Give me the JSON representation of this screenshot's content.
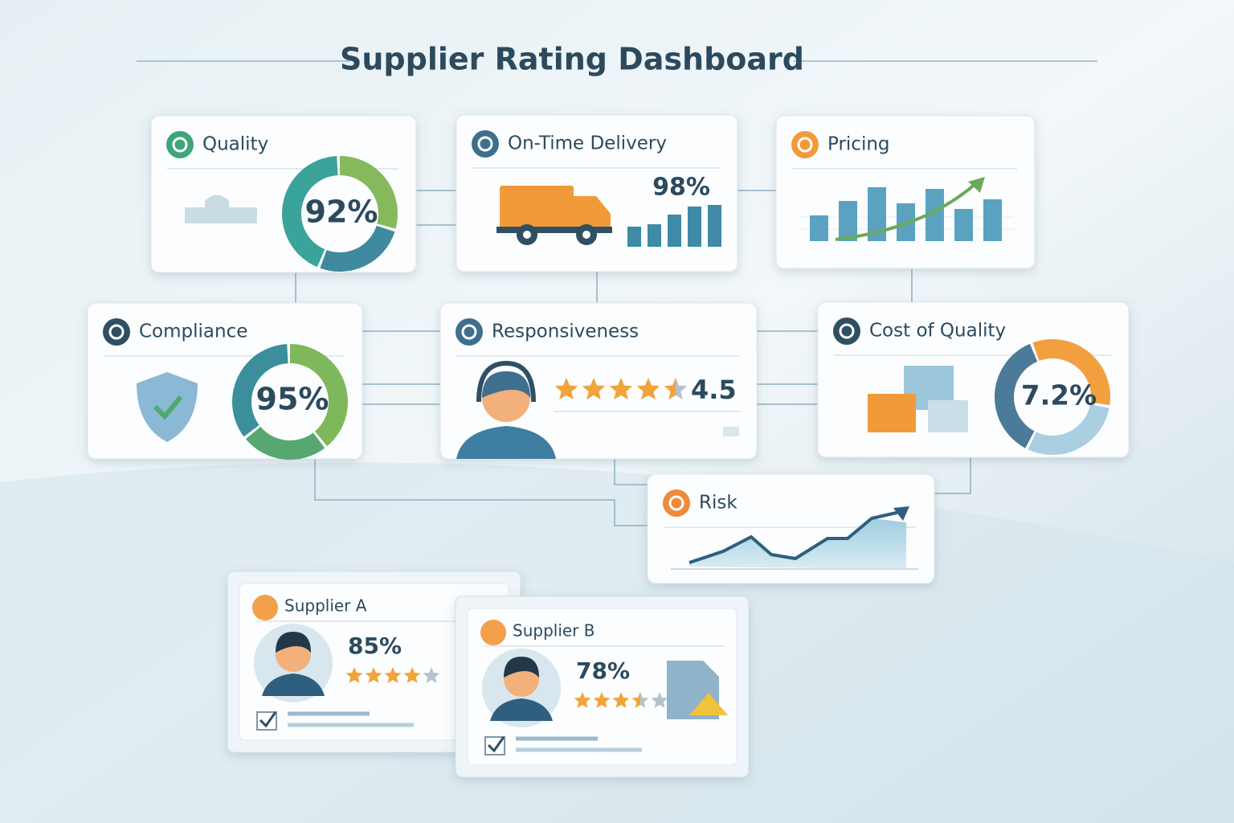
{
  "header": {
    "title": "Supplier Rating Dashboard"
  },
  "cards": [
    {
      "title": "Quality",
      "value": 92,
      "value_label": "92%"
    },
    {
      "title": "On-Time Delivery",
      "value": 98,
      "value_label": "98%"
    },
    {
      "title": "Pricing"
    },
    {
      "title": "Compliance",
      "value": 95,
      "value_label": "95%"
    },
    {
      "title": "Responsiveness",
      "value": 4.5
    },
    {
      "title": "Cost of Quality",
      "value": 7.2,
      "value_label": "7.2%"
    },
    {
      "title": "Risk"
    }
  ],
  "suppliers": [
    {
      "name": "Supplier A",
      "score": 85,
      "score_label": "85%",
      "rating": 4
    },
    {
      "name": "Supplier B",
      "score": 78,
      "score_label": "78%",
      "rating": 3.5
    }
  ]
}
